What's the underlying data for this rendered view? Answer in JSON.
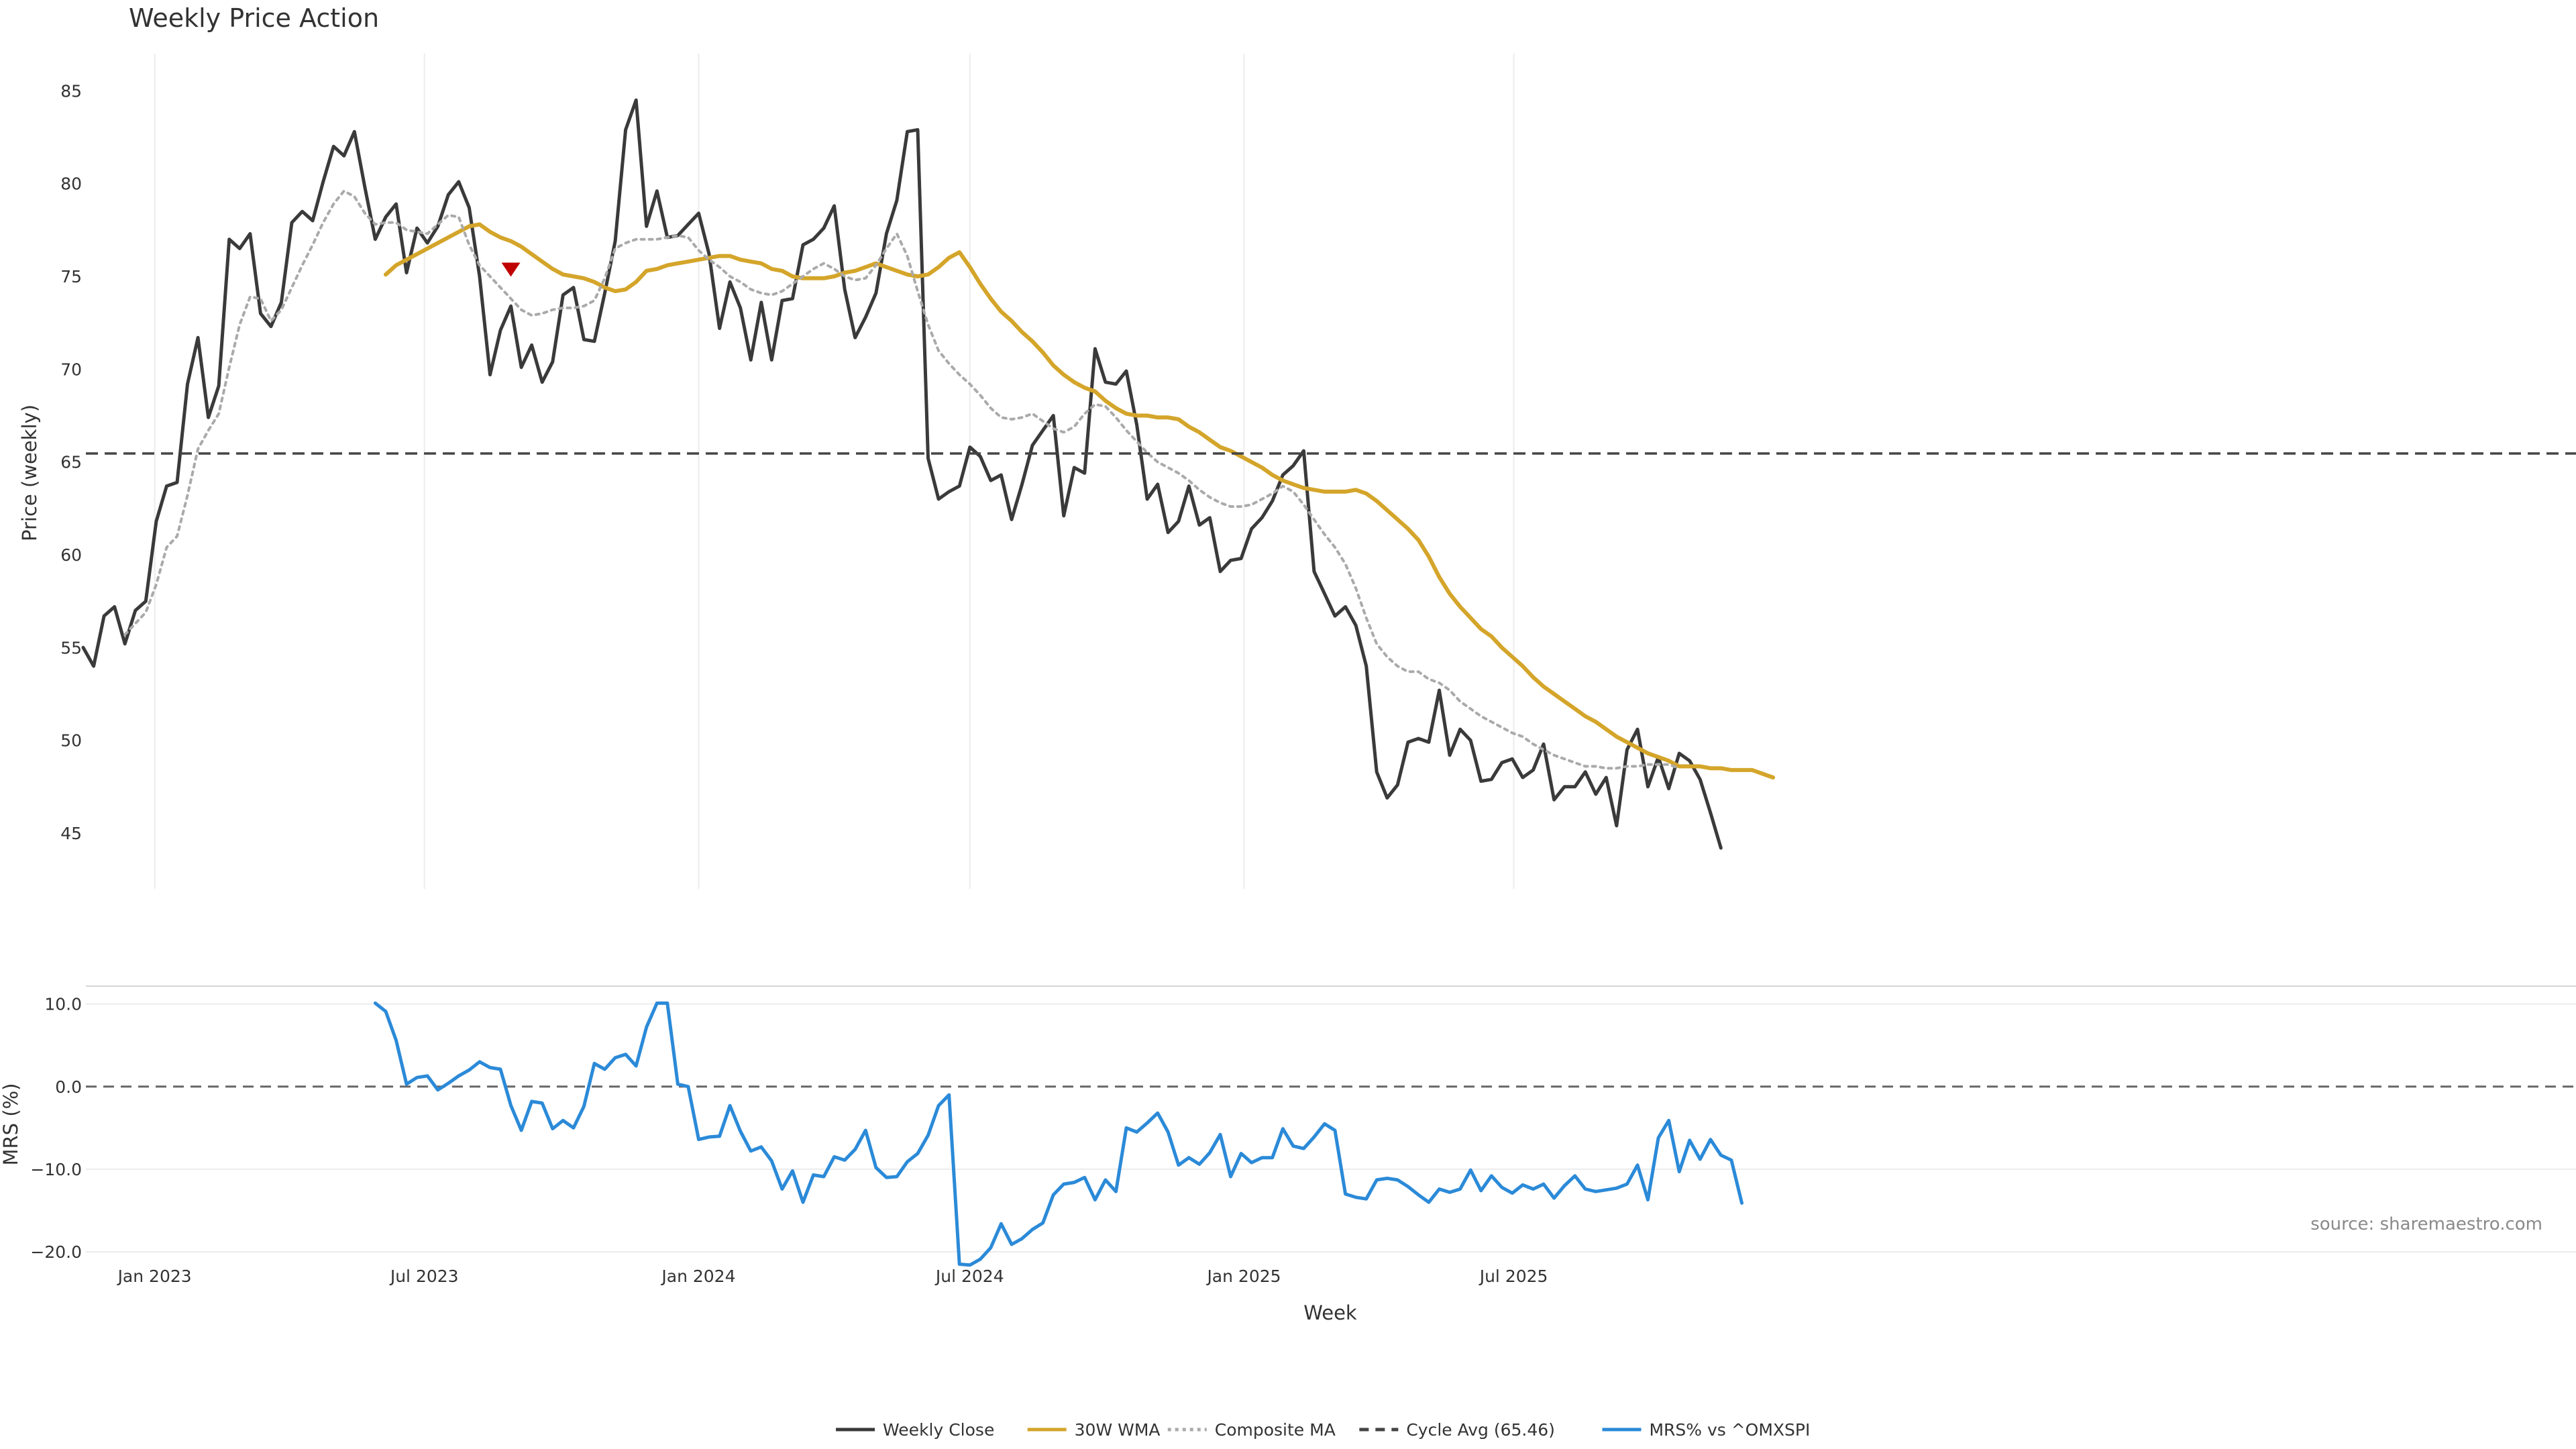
{
  "chart_data": [
    {
      "type": "line",
      "title": "Weekly Price Action",
      "ylabel": "Price (weekly)",
      "ylim": [
        42,
        87
      ],
      "yticks": [
        45,
        50,
        55,
        60,
        65,
        70,
        75,
        80,
        85
      ],
      "grid": "vertical",
      "week_start": "2022-11-14",
      "x_tick_labels": [
        "Jan 2023",
        "Jul 2023",
        "Jan 2024",
        "Jul 2024",
        "Jan 2025",
        "Jul 2025"
      ],
      "series": [
        {
          "name": "Weekly Close",
          "color": "#3a3a3a",
          "style": "solid",
          "start_index": 0,
          "values": [
            55.0,
            54.0,
            56.7,
            57.2,
            55.2,
            57.0,
            57.5,
            61.8,
            63.7,
            63.9,
            69.2,
            71.7,
            67.4,
            69.1,
            77.0,
            76.5,
            77.3,
            73.0,
            72.3,
            73.6,
            77.9,
            78.5,
            78.0,
            80.1,
            82.0,
            81.5,
            82.8,
            79.8,
            77.0,
            78.2,
            78.9,
            75.2,
            77.6,
            76.8,
            77.7,
            79.4,
            80.1,
            78.7,
            75.0,
            69.7,
            72.1,
            73.4,
            70.1,
            71.3,
            69.3,
            70.4,
            74.0,
            74.4,
            71.6,
            71.5,
            74.1,
            76.9,
            82.9,
            84.5,
            77.7,
            79.6,
            77.1,
            77.2,
            77.8,
            78.4,
            76.2,
            72.2,
            74.7,
            73.3,
            70.5,
            73.6,
            70.5,
            73.7,
            73.8,
            76.7,
            77.0,
            77.6,
            78.8,
            74.3,
            71.7,
            72.8,
            74.1,
            77.3,
            79.1,
            82.8,
            82.9,
            65.2,
            63.0,
            63.4,
            63.7,
            65.8,
            65.3,
            64.0,
            64.3,
            61.9,
            63.8,
            65.9,
            66.7,
            67.5,
            62.1,
            64.7,
            64.4,
            71.1,
            69.3,
            69.2,
            69.9,
            67.0,
            63.0,
            63.8,
            61.2,
            61.8,
            63.7,
            61.6,
            62.0,
            59.1,
            59.7,
            59.8,
            61.4,
            62.0,
            62.9,
            64.3,
            64.8,
            65.6,
            59.1,
            57.9,
            56.7,
            57.2,
            56.2,
            54.0,
            48.3,
            46.9,
            47.6,
            49.9,
            50.1,
            49.9,
            52.7,
            49.2,
            50.6,
            50.0,
            47.8,
            47.9,
            48.8,
            49.0,
            48.0,
            48.4,
            49.8,
            46.8,
            47.5,
            47.5,
            48.3,
            47.1,
            48.0,
            45.4,
            49.5,
            50.6,
            47.5,
            49.1,
            47.4,
            49.3,
            48.9,
            47.9,
            46.1,
            44.2
          ]
        },
        {
          "name": "30W WMA",
          "color": "#d4a52a",
          "style": "solid",
          "start_index": 29,
          "values": [
            75.1,
            75.6,
            75.9,
            76.2,
            76.5,
            76.8,
            77.1,
            77.4,
            77.7,
            77.8,
            77.4,
            77.1,
            76.9,
            76.6,
            76.2,
            75.8,
            75.4,
            75.1,
            75.0,
            74.9,
            74.7,
            74.4,
            74.2,
            74.3,
            74.7,
            75.3,
            75.4,
            75.6,
            75.7,
            75.8,
            75.9,
            76.0,
            76.1,
            76.1,
            75.9,
            75.8,
            75.7,
            75.4,
            75.3,
            75.0,
            74.9,
            74.9,
            74.9,
            75.0,
            75.2,
            75.3,
            75.5,
            75.7,
            75.5,
            75.3,
            75.1,
            75.0,
            75.1,
            75.5,
            76.0,
            76.3,
            75.5,
            74.6,
            73.8,
            73.1,
            72.6,
            72.0,
            71.5,
            70.9,
            70.2,
            69.7,
            69.3,
            69.0,
            68.8,
            68.3,
            67.9,
            67.6,
            67.5,
            67.5,
            67.4,
            67.4,
            67.3,
            66.9,
            66.6,
            66.2,
            65.8,
            65.6,
            65.3,
            65.0,
            64.7,
            64.3,
            64.0,
            63.8,
            63.6,
            63.5,
            63.4,
            63.4,
            63.4,
            63.5,
            63.3,
            62.9,
            62.4,
            61.9,
            61.4,
            60.8,
            59.9,
            58.8,
            57.9,
            57.2,
            56.6,
            56.0,
            55.6,
            55.0,
            54.5,
            54.0,
            53.4,
            52.9,
            52.5,
            52.1,
            51.7,
            51.3,
            51.0,
            50.6,
            50.2,
            49.9,
            49.6,
            49.3,
            49.1,
            48.9,
            48.6,
            48.6,
            48.6,
            48.5,
            48.5,
            48.4,
            48.4,
            48.4,
            48.2,
            48.0
          ]
        },
        {
          "name": "Composite MA",
          "color": "#aaaaaa",
          "style": "dotted",
          "start_index": 4,
          "values": [
            55.7,
            56.3,
            56.9,
            58.4,
            60.4,
            61.0,
            63.2,
            65.7,
            66.7,
            67.6,
            70.1,
            72.4,
            73.9,
            73.8,
            72.6,
            73.2,
            74.4,
            75.6,
            76.7,
            77.9,
            78.9,
            79.6,
            79.3,
            78.4,
            77.8,
            77.9,
            77.9,
            77.5,
            77.4,
            77.3,
            77.8,
            78.3,
            78.2,
            76.7,
            75.6,
            75.0,
            74.4,
            73.8,
            73.2,
            72.9,
            73.0,
            73.2,
            73.3,
            73.3,
            73.4,
            73.7,
            74.9,
            76.5,
            76.8,
            77.0,
            77.0,
            77.0,
            77.1,
            77.2,
            77.1,
            76.4,
            75.9,
            75.5,
            75.0,
            74.7,
            74.3,
            74.1,
            74.0,
            74.2,
            74.6,
            75.0,
            75.4,
            75.7,
            75.4,
            75.0,
            74.8,
            74.9,
            75.6,
            76.5,
            77.3,
            76.1,
            74.2,
            72.4,
            71.0,
            70.3,
            69.7,
            69.2,
            68.6,
            67.9,
            67.4,
            67.3,
            67.4,
            67.6,
            67.2,
            66.8,
            66.6,
            66.9,
            67.6,
            68.1,
            68.0,
            67.4,
            66.7,
            66.1,
            65.5,
            65.0,
            64.7,
            64.4,
            64.0,
            63.5,
            63.1,
            62.8,
            62.6,
            62.6,
            62.7,
            63.0,
            63.3,
            63.7,
            63.4,
            62.7,
            61.9,
            61.1,
            60.4,
            59.5,
            58.2,
            56.6,
            55.2,
            54.5,
            54.0,
            53.7,
            53.7,
            53.3,
            53.1,
            52.7,
            52.1,
            51.7,
            51.3,
            51.0,
            50.7,
            50.4,
            50.2,
            49.8,
            49.5,
            49.2,
            49.0,
            48.8,
            48.6,
            48.6,
            48.5,
            48.5,
            48.6,
            48.6,
            48.7,
            48.7,
            48.7,
            48.5
          ]
        },
        {
          "name": "Cycle Avg (65.46)",
          "color": "#444444",
          "style": "dashed",
          "value": 65.46
        }
      ],
      "annotations": [
        {
          "type": "marker",
          "shape": "down-triangle",
          "color": "#c00000",
          "index": 41,
          "y": 75.2
        }
      ]
    },
    {
      "type": "line",
      "ylabel": "MRS (%)",
      "xlabel": "Week",
      "ylim": [
        -23,
        12
      ],
      "yticks": [
        -20.0,
        -10.0,
        0.0,
        10.0
      ],
      "ytick_labels": [
        "−20.0",
        "−10.0",
        "0.0",
        "10.0"
      ],
      "grid": "horizontal",
      "reference_line": {
        "value": 0,
        "style": "dashed",
        "color": "#666666"
      },
      "series": [
        {
          "name": "MRS% vs ^OMXSPI",
          "color": "#2b8ad8",
          "style": "solid",
          "start_index": 28,
          "values": [
            10.1,
            9.1,
            5.6,
            0.3,
            1.1,
            1.3,
            -0.4,
            0.4,
            1.3,
            2.0,
            3.0,
            2.3,
            2.1,
            -2.3,
            -5.3,
            -1.8,
            -2.0,
            -5.1,
            -4.1,
            -5.0,
            -2.4,
            2.8,
            2.1,
            3.5,
            3.9,
            2.5,
            7.2,
            10.1,
            10.1,
            0.3,
            0.0,
            -6.4,
            -6.1,
            -6.0,
            -2.3,
            -5.4,
            -7.8,
            -7.3,
            -9.0,
            -12.4,
            -10.2,
            -14.0,
            -10.7,
            -10.9,
            -8.5,
            -8.9,
            -7.6,
            -5.3,
            -9.8,
            -11.0,
            -10.9,
            -9.1,
            -8.1,
            -5.9,
            -2.3,
            -1.0,
            -21.5,
            -21.6,
            -20.9,
            -19.5,
            -16.6,
            -19.1,
            -18.4,
            -17.3,
            -16.5,
            -13.1,
            -11.8,
            -11.6,
            -11.0,
            -13.7,
            -11.3,
            -12.7,
            -5.0,
            -5.5,
            -4.4,
            -3.2,
            -5.5,
            -9.5,
            -8.6,
            -9.4,
            -8.0,
            -5.8,
            -10.9,
            -8.1,
            -9.2,
            -8.6,
            -8.6,
            -5.1,
            -7.2,
            -7.5,
            -6.1,
            -4.5,
            -5.3,
            -13.0,
            -13.4,
            -13.6,
            -11.3,
            -11.1,
            -11.3,
            -12.1,
            -13.1,
            -14.0,
            -12.4,
            -12.8,
            -12.4,
            -10.1,
            -12.6,
            -10.8,
            -12.2,
            -12.9,
            -11.9,
            -12.4,
            -11.8,
            -13.5,
            -12.0,
            -10.8,
            -12.4,
            -12.7,
            -12.5,
            -12.3,
            -11.8,
            -9.5,
            -13.7,
            -6.2,
            -4.1,
            -10.3,
            -6.5,
            -8.8,
            -6.4,
            -8.3,
            -8.9,
            -14.1
          ]
        }
      ]
    }
  ],
  "legend": {
    "placement": "bottom-center",
    "items": [
      {
        "label": "Weekly Close",
        "color": "#3a3a3a",
        "style": "solid"
      },
      {
        "label": "30W WMA",
        "color": "#d4a52a",
        "style": "solid"
      },
      {
        "label": "Composite MA",
        "color": "#aaaaaa",
        "style": "dotted"
      },
      {
        "label": "Cycle Avg (65.46)",
        "color": "#444444",
        "style": "dashed"
      },
      {
        "label": "MRS% vs ^OMXSPI",
        "color": "#2b8ad8",
        "style": "solid"
      }
    ]
  },
  "source": "source: sharemaestro.com"
}
